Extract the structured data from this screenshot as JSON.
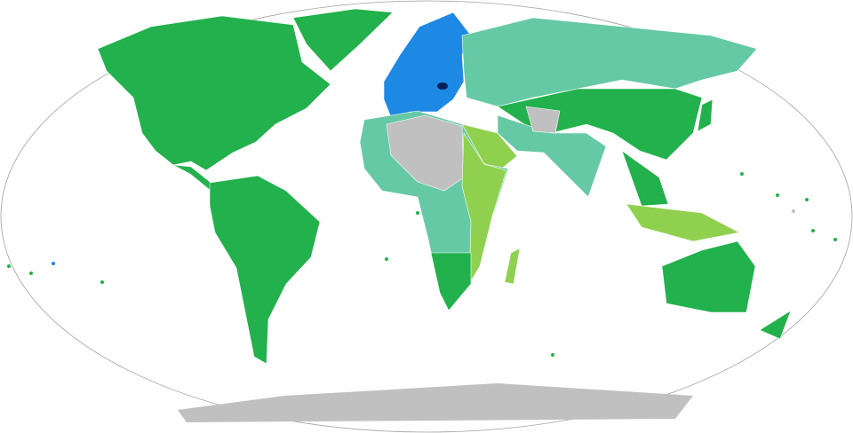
{
  "map": {
    "projection": "robinson",
    "colors": {
      "background": "#ffffff",
      "outline": "#a0a0a0",
      "dark_green": "#22b14c",
      "teal": "#66c9a6",
      "light_green": "#8fd14f",
      "yellow_green": "#c6e04a",
      "blue": "#1e88e5",
      "navy": "#00205b",
      "gray": "#c0c0c0"
    }
  }
}
